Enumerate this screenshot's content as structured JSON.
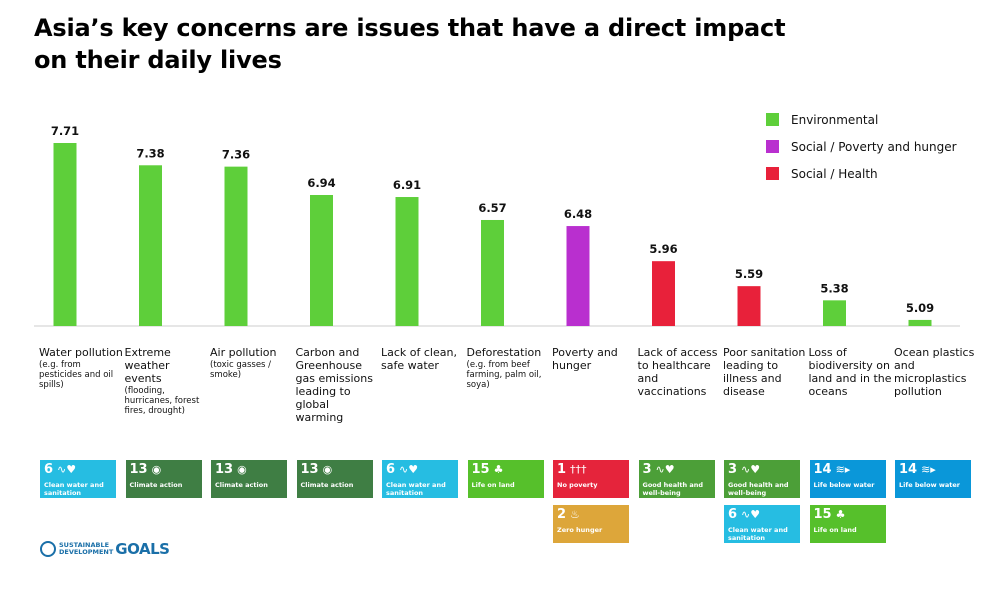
{
  "title": "Asia’s key concerns are issues that have a direct impact on their daily lives",
  "colors": {
    "Environmental": "#5ecf3a",
    "Social / Poverty and hunger": "#b92fcf",
    "Social / Health": "#e8213a"
  },
  "chart_data": {
    "type": "bar",
    "title": "Asia’s key concerns are issues that have a direct impact on their daily lives",
    "xlabel": "",
    "ylabel": "",
    "ylim": [
      5,
      8
    ],
    "grid": false,
    "legend_position": "top-right",
    "legend": [
      "Environmental",
      "Social / Poverty and hunger",
      "Social / Health"
    ],
    "categories": [
      "Water pollution (e.g. from pesticides and oil spills)",
      "Extreme weather events (flooding, hurricanes, forest fires, drought)",
      "Air pollution (toxic gasses / smoke)",
      "Carbon and Greenhouse gas emissions leading to global warming",
      "Lack of clean, safe water",
      "Deforestation (e.g. from beef farming, palm oil, soya)",
      "Poverty and hunger",
      "Lack of access to healthcare and vaccinations",
      "Poor sanitation leading to illness and disease",
      "Loss of biodiversity on land and in the oceans",
      "Ocean plastics and microplastics pollution"
    ],
    "values": [
      7.71,
      7.38,
      7.36,
      6.94,
      6.91,
      6.57,
      6.48,
      5.96,
      5.59,
      5.38,
      5.09
    ],
    "value_labels": [
      "7.71",
      "7.38",
      "7.36",
      "6.94",
      "6.91",
      "6.57",
      "6.48",
      "5.96",
      "5.59",
      "5.38",
      "5.09"
    ],
    "groups": [
      "Environmental",
      "Environmental",
      "Environmental",
      "Environmental",
      "Environmental",
      "Environmental",
      "Social / Poverty and hunger",
      "Social / Health",
      "Social / Health",
      "Environmental",
      "Environmental"
    ]
  },
  "category_labels": [
    {
      "main": "Water pollution",
      "sub": "(e.g. from pesticides and oil spills)"
    },
    {
      "main": "Extreme weather events",
      "sub": "(flooding, hurricanes, forest fires, drought)"
    },
    {
      "main": "Air pollution",
      "sub": "(toxic gasses / smoke)"
    },
    {
      "main": "Carbon and Greenhouse gas emissions leading to global warming",
      "sub": ""
    },
    {
      "main": "Lack of clean, safe water",
      "sub": ""
    },
    {
      "main": "Deforestation",
      "sub": "(e.g. from beef farming, palm oil, soya)"
    },
    {
      "main": "Poverty and hunger",
      "sub": ""
    },
    {
      "main": "Lack of access to healthcare and vaccinations",
      "sub": ""
    },
    {
      "main": "Poor sanitation leading to illness and disease",
      "sub": ""
    },
    {
      "main": "Loss of biodiversity on land and in the oceans",
      "sub": ""
    },
    {
      "main": "Ocean plastics and microplastics pollution",
      "sub": ""
    }
  ],
  "sdg_goals": [
    [
      {
        "number": "6",
        "label": "Clean water and sanitation",
        "color": "#26bde2",
        "icon": "water-drop-icon"
      }
    ],
    [
      {
        "number": "13",
        "label": "Climate action",
        "color": "#3f7e44",
        "icon": "eye-globe-icon"
      }
    ],
    [
      {
        "number": "13",
        "label": "Climate action",
        "color": "#3f7e44",
        "icon": "eye-globe-icon"
      }
    ],
    [
      {
        "number": "13",
        "label": "Climate action",
        "color": "#3f7e44",
        "icon": "eye-globe-icon"
      }
    ],
    [
      {
        "number": "6",
        "label": "Clean water and sanitation",
        "color": "#26bde2",
        "icon": "water-drop-icon"
      }
    ],
    [
      {
        "number": "15",
        "label": "Life on land",
        "color": "#56c02b",
        "icon": "tree-bird-icon"
      }
    ],
    [
      {
        "number": "1",
        "label": "No poverty",
        "color": "#e5243b",
        "icon": "family-icon"
      },
      {
        "number": "2",
        "label": "Zero hunger",
        "color": "#dda63a",
        "icon": "bowl-icon"
      }
    ],
    [
      {
        "number": "3",
        "label": "Good health and well-being",
        "color": "#4c9f38",
        "icon": "heartbeat-icon"
      }
    ],
    [
      {
        "number": "3",
        "label": "Good health and well-being",
        "color": "#4c9f38",
        "icon": "heartbeat-icon"
      },
      {
        "number": "6",
        "label": "Clean water and sanitation",
        "color": "#26bde2",
        "icon": "water-drop-icon"
      }
    ],
    [
      {
        "number": "14",
        "label": "Life below water",
        "color": "#0a97d9",
        "icon": "fish-icon"
      },
      {
        "number": "15",
        "label": "Life on land",
        "color": "#56c02b",
        "icon": "tree-bird-icon"
      }
    ],
    [
      {
        "number": "14",
        "label": "Life below water",
        "color": "#0a97d9",
        "icon": "fish-icon"
      }
    ]
  ],
  "sdg_logo": {
    "line1": "SUSTAINABLE",
    "line2": "DEVELOPMENT",
    "word": "GOALS"
  }
}
